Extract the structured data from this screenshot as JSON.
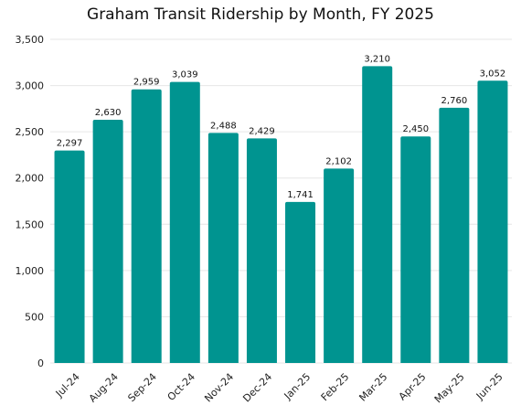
{
  "chart_data": {
    "type": "bar",
    "title": "Graham Transit Ridership by Month, FY 2025",
    "xlabel": "",
    "ylabel": "",
    "categories": [
      "Jul-24",
      "Aug-24",
      "Sep-24",
      "Oct-24",
      "Nov-24",
      "Dec-24",
      "Jan-25",
      "Feb-25",
      "Mar-25",
      "Apr-25",
      "May-25",
      "Jun-25"
    ],
    "values": [
      2297,
      2630,
      2959,
      3039,
      2488,
      2429,
      1741,
      2102,
      3210,
      2450,
      2760,
      3052
    ],
    "value_labels": [
      "2,297",
      "2,630",
      "2,959",
      "3,039",
      "2,488",
      "2,429",
      "1,741",
      "2,102",
      "3,210",
      "2,450",
      "2,760",
      "3,052"
    ],
    "ylim": [
      0,
      3500
    ],
    "yticks": [
      0,
      500,
      1000,
      1500,
      2000,
      2500,
      3000,
      3500
    ],
    "ytick_labels": [
      "0",
      "500",
      "1,000",
      "1,500",
      "2,000",
      "2,500",
      "3,000",
      "3,500"
    ],
    "grid": true,
    "legend": "none",
    "colors": {
      "bar": "#009490",
      "grid": "#e6e6e6"
    }
  }
}
